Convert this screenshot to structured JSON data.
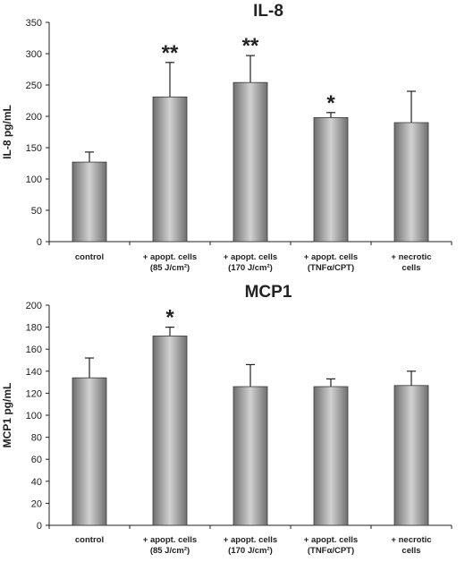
{
  "chart_data": [
    {
      "type": "bar",
      "title": "IL-8",
      "ylabel": "IL-8  pg/mL",
      "xlabel": "",
      "ylim": [
        0,
        350
      ],
      "yticks": [
        0,
        50,
        100,
        150,
        200,
        250,
        300,
        350
      ],
      "grid": false,
      "categories": [
        [
          "control"
        ],
        [
          "+ apopt. cells",
          "(85 J/cm²)"
        ],
        [
          "+ apopt. cells",
          "(170 J/cm²)"
        ],
        [
          "+ apopt. cells",
          "(TNFα/CPT)"
        ],
        [
          "+ necrotic",
          "cells"
        ]
      ],
      "values": [
        127,
        231,
        254,
        198,
        190
      ],
      "error_upper": [
        16,
        55,
        43,
        8,
        50
      ],
      "significance": [
        "",
        "**",
        "**",
        "*",
        ""
      ]
    },
    {
      "type": "bar",
      "title": "MCP1",
      "ylabel": "MCP1 pg/mL",
      "xlabel": "",
      "ylim": [
        0,
        200
      ],
      "yticks": [
        0,
        20,
        40,
        60,
        80,
        100,
        120,
        140,
        160,
        180,
        200
      ],
      "grid": false,
      "categories": [
        [
          "control"
        ],
        [
          "+ apopt. cells",
          "(85 J/cm²)"
        ],
        [
          "+ apopt. cells",
          "(170 J/cm²)"
        ],
        [
          "+ apopt. cells",
          "(TNFα/CPT)"
        ],
        [
          "+ necrotic",
          "cells"
        ]
      ],
      "values": [
        134,
        172,
        126,
        126,
        127
      ],
      "error_upper": [
        18,
        8,
        20,
        7,
        13
      ],
      "significance": [
        "",
        "*",
        "",
        "",
        ""
      ]
    }
  ],
  "style": {
    "bar_dark": "#6f6f6f",
    "bar_light": "#d2d2d2",
    "bar_edge": "#3a3a3a",
    "axis_color": "#222222"
  }
}
